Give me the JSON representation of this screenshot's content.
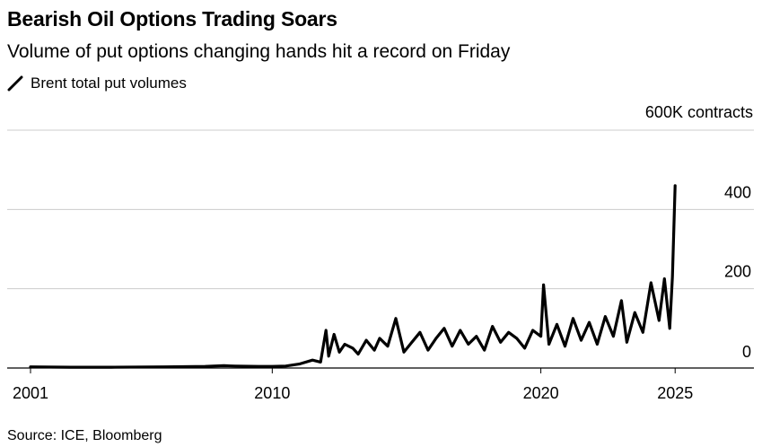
{
  "chart_data": {
    "type": "line",
    "title": "Bearish Oil Options Trading Soars",
    "subtitle": "Volume of put options changing hands hit a record on Friday",
    "ylabel_unit": "600K contracts",
    "source": "Source: ICE, Bloomberg",
    "xlim": [
      2001,
      2028
    ],
    "ylim": [
      0,
      600
    ],
    "y_ticks": [
      0,
      200,
      400
    ],
    "x_ticks": [
      2001,
      2010,
      2020,
      2025
    ],
    "grid": true,
    "legend_position": "top-left",
    "series": [
      {
        "name": "Brent total put volumes",
        "color": "#000000",
        "x": [
          2001.0,
          2002.5,
          2004.0,
          2006.0,
          2007.5,
          2008.2,
          2008.6,
          2009.5,
          2010.0,
          2010.5,
          2011.0,
          2011.5,
          2011.8,
          2012.0,
          2012.1,
          2012.3,
          2012.5,
          2012.7,
          2013.0,
          2013.2,
          2013.5,
          2013.8,
          2014.0,
          2014.3,
          2014.6,
          2014.9,
          2015.2,
          2015.5,
          2015.8,
          2016.1,
          2016.4,
          2016.7,
          2017.0,
          2017.3,
          2017.6,
          2017.9,
          2018.2,
          2018.5,
          2018.8,
          2019.1,
          2019.4,
          2019.7,
          2020.0,
          2020.1,
          2020.3,
          2020.6,
          2020.9,
          2021.2,
          2021.5,
          2021.8,
          2022.1,
          2022.4,
          2022.7,
          2023.0,
          2023.2,
          2023.5,
          2023.8,
          2024.1,
          2024.4,
          2024.6,
          2024.8,
          2024.9,
          2025.0
        ],
        "values": [
          3,
          2,
          2,
          3,
          4,
          6,
          5,
          4,
          4,
          5,
          10,
          20,
          15,
          95,
          30,
          85,
          40,
          60,
          50,
          35,
          70,
          45,
          75,
          55,
          125,
          40,
          65,
          90,
          45,
          75,
          100,
          55,
          95,
          60,
          80,
          45,
          105,
          65,
          90,
          75,
          50,
          95,
          80,
          210,
          60,
          110,
          55,
          125,
          70,
          115,
          60,
          130,
          80,
          170,
          65,
          140,
          90,
          215,
          120,
          225,
          100,
          230,
          460
        ]
      }
    ]
  }
}
